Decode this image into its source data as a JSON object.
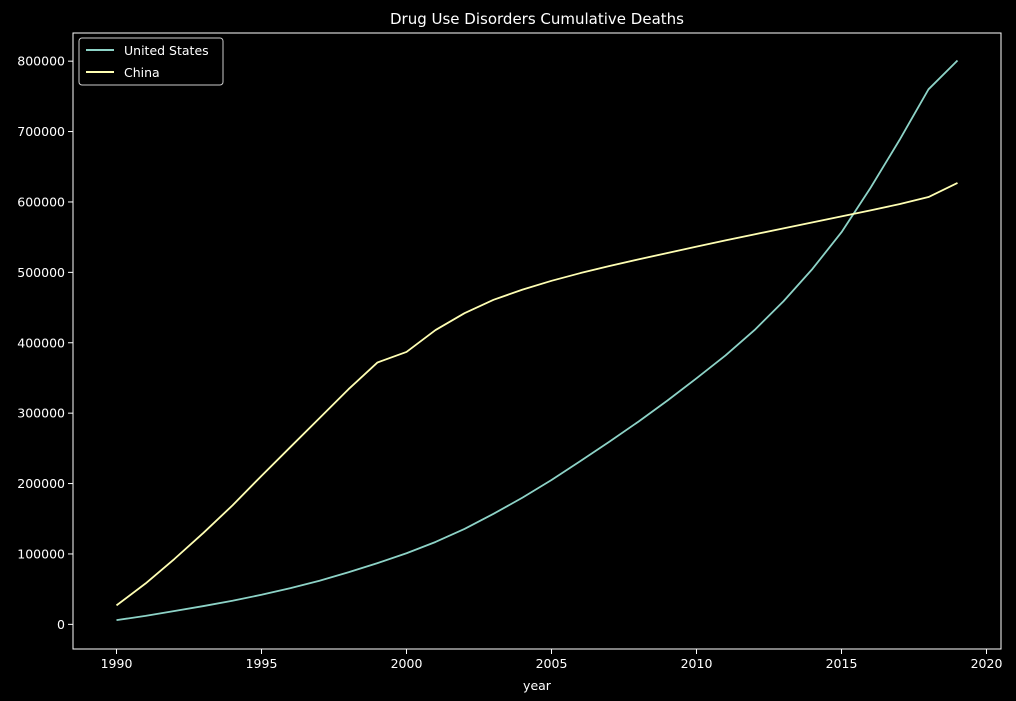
{
  "chart_data": {
    "type": "line",
    "title": "Drug Use Disorders Cumulative Deaths",
    "xlabel": "year",
    "ylabel": "",
    "xlim": [
      1988.5,
      2020.5
    ],
    "ylim": [
      -35000,
      840000
    ],
    "xticks": [
      1990,
      1995,
      2000,
      2005,
      2010,
      2015,
      2020
    ],
    "yticks": [
      0,
      100000,
      200000,
      300000,
      400000,
      500000,
      600000,
      700000,
      800000
    ],
    "x": [
      1990,
      1991,
      1992,
      1993,
      1994,
      1995,
      1996,
      1997,
      1998,
      1999,
      2000,
      2001,
      2002,
      2003,
      2004,
      2005,
      2006,
      2007,
      2008,
      2009,
      2010,
      2011,
      2012,
      2013,
      2014,
      2015,
      2016,
      2017,
      2018,
      2019
    ],
    "series": [
      {
        "name": "United States",
        "color": "#8dd3c7",
        "values": [
          6000,
          12000,
          19000,
          26000,
          33500,
          42000,
          51500,
          62000,
          74000,
          87000,
          101000,
          117000,
          135500,
          157000,
          180000,
          205000,
          232000,
          259500,
          288000,
          318000,
          349500,
          382000,
          418000,
          459000,
          505000,
          557000,
          620000,
          688000,
          760000,
          801000
        ]
      },
      {
        "name": "China",
        "color": "#ffffb3",
        "values": [
          27000,
          58000,
          93000,
          130000,
          169000,
          211000,
          252000,
          293000,
          334000,
          372000,
          387000,
          418000,
          442000,
          461000,
          475500,
          488000,
          499000,
          509000,
          518500,
          527500,
          536500,
          545500,
          554000,
          562500,
          571000,
          579500,
          588000,
          597000,
          607000,
          627000
        ]
      }
    ],
    "legend": {
      "position": "top-left"
    },
    "grid": false
  }
}
